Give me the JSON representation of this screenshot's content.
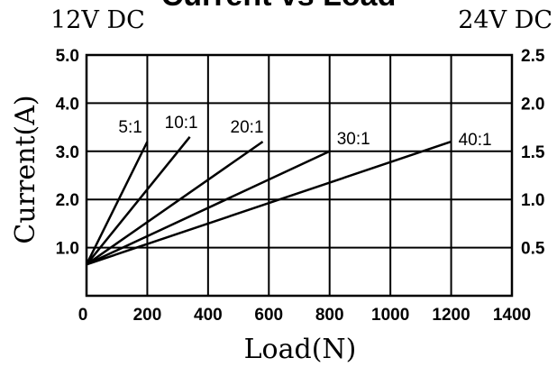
{
  "chart_data": {
    "type": "line",
    "title": "Current vs Load",
    "left_header": "12V DC",
    "right_header": "24V DC",
    "xlabel": "Load(N)",
    "ylabel": "Current(A)",
    "xlim": [
      0,
      1400
    ],
    "ylim": [
      0,
      5.0
    ],
    "ylim_right": [
      0,
      2.5
    ],
    "x_ticks": [
      "0",
      "200",
      "400",
      "600",
      "800",
      "1000",
      "1200",
      "1400"
    ],
    "y_ticks_left": [
      "1.0",
      "2.0",
      "3.0",
      "4.0",
      "5.0"
    ],
    "y_ticks_right": [
      "0.5",
      "1.0",
      "1.5",
      "2.0",
      "2.5"
    ],
    "grid": true,
    "series": [
      {
        "name": "5:1",
        "x": [
          0,
          200
        ],
        "y": [
          0.65,
          3.2
        ]
      },
      {
        "name": "10:1",
        "x": [
          0,
          340
        ],
        "y": [
          0.65,
          3.3
        ]
      },
      {
        "name": "20:1",
        "x": [
          0,
          580
        ],
        "y": [
          0.65,
          3.2
        ]
      },
      {
        "name": "30:1",
        "x": [
          0,
          800
        ],
        "y": [
          0.65,
          3.0
        ]
      },
      {
        "name": "40:1",
        "x": [
          0,
          1200
        ],
        "y": [
          0.65,
          3.2
        ]
      }
    ]
  }
}
